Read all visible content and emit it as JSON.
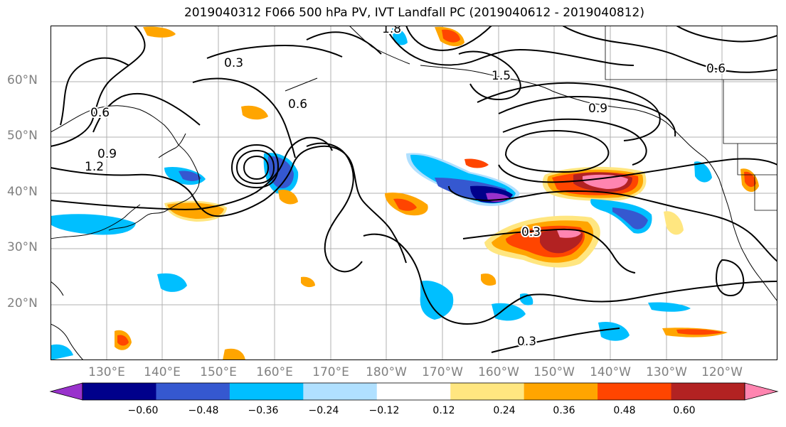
{
  "title": "2019040312 F066 500 hPa PV, IVT Landfall PC (2019040612 - 2019040812)",
  "map": {
    "lat_labels": [
      "60°N",
      "50°N",
      "40°N",
      "30°N",
      "20°N"
    ],
    "lon_labels": [
      "130°E",
      "140°E",
      "150°E",
      "160°E",
      "170°E",
      "180°W",
      "170°W",
      "160°W",
      "150°W",
      "140°W",
      "130°W",
      "120°W"
    ],
    "contour_labels": [
      "0.3",
      "0.6",
      "0.9",
      "1.2",
      "1.5",
      "1.8",
      "0.3",
      "0.6",
      "0.9",
      "0.3",
      "0.6"
    ]
  },
  "colorbar": {
    "colors": [
      "#9932cc",
      "#00008b",
      "#3558d0",
      "#00bfff",
      "#b0e0ff",
      "#ffffff",
      "#ffe680",
      "#ffa500",
      "#ff4500",
      "#b22222",
      "#ff85b0"
    ],
    "tick_labels": [
      "−0.60",
      "−0.48",
      "−0.36",
      "−0.24",
      "−0.12",
      "0.12",
      "0.24",
      "0.36",
      "0.48",
      "0.60"
    ]
  }
}
